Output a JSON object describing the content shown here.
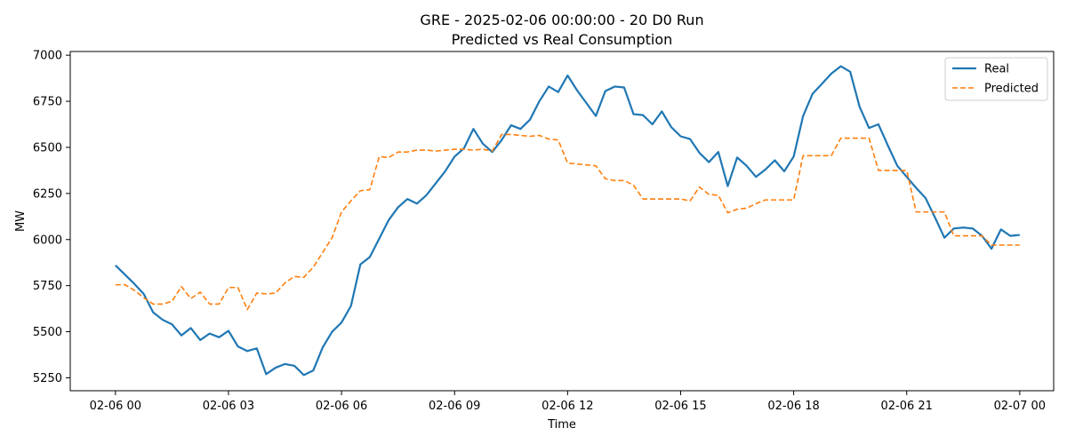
{
  "chart_data": {
    "type": "line",
    "title": "GRE - 2025-02-06 00:00:00 - 20 D0 Run",
    "subtitle": "Predicted vs Real Consumption",
    "xlabel": "Time",
    "ylabel": "MW",
    "xlim_hours": [
      -1.2,
      24.9
    ],
    "ylim": [
      5180,
      7020
    ],
    "xticks": [
      {
        "hour": 0,
        "label": "02-06 00"
      },
      {
        "hour": 3,
        "label": "02-06 03"
      },
      {
        "hour": 6,
        "label": "02-06 06"
      },
      {
        "hour": 9,
        "label": "02-06 09"
      },
      {
        "hour": 12,
        "label": "02-06 12"
      },
      {
        "hour": 15,
        "label": "02-06 15"
      },
      {
        "hour": 18,
        "label": "02-06 18"
      },
      {
        "hour": 21,
        "label": "02-06 21"
      },
      {
        "hour": 24,
        "label": "02-07 00"
      }
    ],
    "yticks": [
      5250,
      5500,
      5750,
      6000,
      6250,
      6500,
      6750,
      7000
    ],
    "grid": false,
    "legend_position": "top-right",
    "interval_minutes": 15,
    "series": [
      {
        "name": "Real",
        "color": "#1f77b4",
        "style": "solid",
        "values": [
          5860,
          5810,
          5760,
          5705,
          5605,
          5565,
          5540,
          5480,
          5520,
          5455,
          5490,
          5470,
          5505,
          5420,
          5395,
          5410,
          5270,
          5305,
          5325,
          5315,
          5265,
          5290,
          5415,
          5500,
          5550,
          5640,
          5865,
          5905,
          6005,
          6105,
          6175,
          6220,
          6195,
          6240,
          6305,
          6370,
          6450,
          6495,
          6600,
          6520,
          6475,
          6540,
          6620,
          6600,
          6650,
          6750,
          6830,
          6800,
          6890,
          6810,
          6740,
          6670,
          6805,
          6830,
          6825,
          6680,
          6675,
          6625,
          6695,
          6610,
          6560,
          6545,
          6470,
          6420,
          6475,
          6290,
          6445,
          6400,
          6340,
          6380,
          6430,
          6370,
          6450,
          6670,
          6790,
          6845,
          6900,
          6940,
          6910,
          6720,
          6605,
          6625,
          6510,
          6400,
          6340,
          6280,
          6225,
          6120,
          6010,
          6060,
          6065,
          6060,
          6020,
          5950,
          6055,
          6020,
          6025
        ]
      },
      {
        "name": "Predicted",
        "color": "#ff7f0e",
        "style": "dashed",
        "values": [
          5755,
          5755,
          5725,
          5685,
          5650,
          5650,
          5665,
          5745,
          5680,
          5715,
          5650,
          5650,
          5740,
          5740,
          5620,
          5710,
          5705,
          5710,
          5765,
          5800,
          5795,
          5850,
          5930,
          6010,
          6150,
          6210,
          6265,
          6270,
          6450,
          6445,
          6475,
          6475,
          6485,
          6485,
          6480,
          6485,
          6490,
          6490,
          6485,
          6490,
          6480,
          6570,
          6570,
          6565,
          6560,
          6565,
          6545,
          6540,
          6415,
          6410,
          6405,
          6400,
          6330,
          6320,
          6320,
          6295,
          6220,
          6220,
          6220,
          6220,
          6220,
          6210,
          6285,
          6245,
          6240,
          6145,
          6165,
          6170,
          6195,
          6215,
          6215,
          6215,
          6215,
          6455,
          6455,
          6455,
          6455,
          6550,
          6550,
          6550,
          6550,
          6375,
          6375,
          6375,
          6375,
          6150,
          6150,
          6150,
          6150,
          6020,
          6020,
          6020,
          6020,
          5970,
          5970,
          5970,
          5970
        ]
      }
    ]
  }
}
